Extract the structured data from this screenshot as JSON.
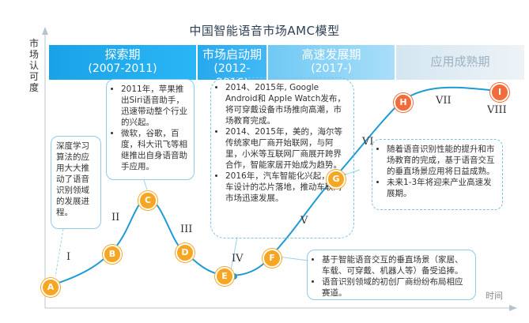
{
  "title": "中国智能语音市场AMC模型",
  "y_axis_label": "市场认可度",
  "x_axis_label": "时间",
  "phases": [
    {
      "name": "探索期",
      "years": "(2007-2011)"
    },
    {
      "name": "市场启动期",
      "years": "(2012-2016)"
    },
    {
      "name": "高速发展期",
      "years": "(2017-)"
    },
    {
      "name": "应用成熟期",
      "years": ""
    }
  ],
  "points": [
    "A",
    "B",
    "C",
    "D",
    "E",
    "F",
    "G",
    "H",
    "I"
  ],
  "stages": [
    "I",
    "II",
    "III",
    "IV",
    "V",
    "VI",
    "VII",
    "VIII"
  ],
  "point_colors": {
    "A": "#f6a623",
    "B": "#f6a623",
    "C": "#f6a623",
    "D": "#f6a623",
    "E": "#f6a623",
    "F": "#f6a623",
    "G": "#f6a623",
    "H": "#f26b3a",
    "I": "#f26b3a"
  },
  "curve_color": "#1e9ad6",
  "notes": {
    "a_note": "深度学习算法的应用大大推动了语音识别领域的发展进程。",
    "c_note": [
      "2011年，苹果推出Siri语音助手，迅速带动整个行业的兴起。",
      "微软，谷歌，百度，科大讯飞等相继推出自身语音助手应用。"
    ],
    "e_note": [
      "2014、2015年, Google Android和 Apple Watch发布，将可穿戴设备市场推向高潮，市场教育完成。",
      "2014、2015年，美的，海尔等传统家电厂商开始联网，与阿里，小米等互联网厂商展开跨界合作，智能家居开始成为趋势。",
      "2016年，汽车智能化兴起，专为车设计的芯片落地，推动车联网市场迅速发展。"
    ],
    "f_note": [
      "基于智能语音交互的垂直场景（家居、车载、可穿戴、机器人等）备受追捧。",
      "语音识别领域的初创厂商纷纷布局相应赛道。"
    ],
    "g_note": [
      "随着语音识别性能的提升和市场教育的完成，基于语音交互的垂直场景应用将日益成熟。",
      "未来1-3年将迎来产业高速发展期。"
    ]
  }
}
